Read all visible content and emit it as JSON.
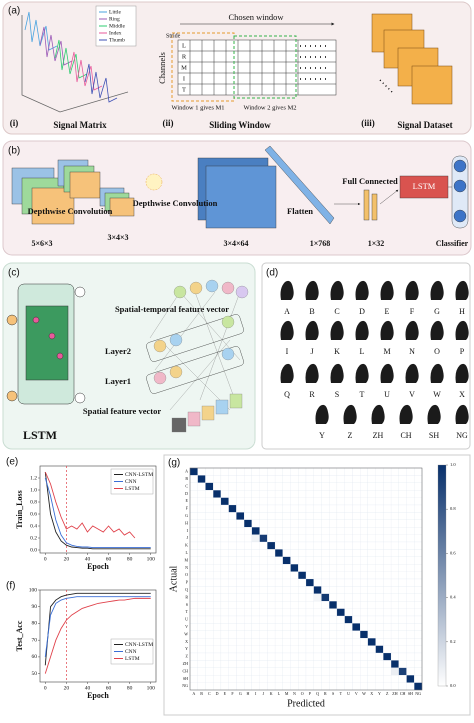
{
  "panels": {
    "a": {
      "label": "(a)",
      "matrix": {
        "tag": "(i)",
        "caption": "Signal Matrix",
        "legend": [
          "Little",
          "Ring",
          "Middle",
          "Index",
          "Thumb"
        ]
      },
      "window": {
        "tag": "(ii)",
        "caption": "Sliding Window",
        "chosen": "Chosen window",
        "stride": "Stride",
        "channels": "Channels",
        "rows": [
          "L",
          "R",
          "M",
          "I",
          "T"
        ],
        "w1": "Window 1 gives M1",
        "w2": "Window 2 gives M2"
      },
      "dataset": {
        "tag": "(iii)",
        "caption": "Signal Dataset"
      }
    },
    "b": {
      "label": "(b)",
      "dims": [
        "5×6×3",
        "3×4×3",
        "3×4×64",
        "1×768",
        "1×32"
      ],
      "conv1": "Depthwise Convolution",
      "conv2": "Depthwise Convolution",
      "flatten": "Flatten",
      "fc": "Full Connected",
      "lstm": "LSTM",
      "classifier": "Classifier"
    },
    "c": {
      "label": "(c)",
      "st_vector": "Spatial-temporal feature vector",
      "layer2": "Layer2",
      "layer1": "Layer1",
      "s_vector": "Spatial feature vector",
      "lstm": "LSTM"
    },
    "d": {
      "label": "(d)",
      "letters": [
        "A",
        "B",
        "C",
        "D",
        "E",
        "F",
        "G",
        "H",
        "I",
        "J",
        "K",
        "L",
        "M",
        "N",
        "O",
        "P",
        "Q",
        "R",
        "S",
        "T",
        "U",
        "V",
        "W",
        "X",
        "Y",
        "Z",
        "ZH",
        "CH",
        "SH",
        "NG"
      ]
    }
  },
  "chart_data": [
    {
      "type": "line",
      "label": "(e)",
      "y_label": "Train_Loss",
      "x_label": "Epoch",
      "x": [
        0,
        5,
        10,
        15,
        20,
        25,
        30,
        35,
        40,
        45,
        50,
        55,
        60,
        65,
        70,
        75,
        80,
        85,
        90,
        95,
        100
      ],
      "xlim": [
        -5,
        105
      ],
      "xticks": [
        0,
        20,
        40,
        60,
        80,
        100
      ],
      "ylim": [
        -0.05,
        1.4
      ],
      "yticks": [
        {
          "value": 0,
          "label": "0.0"
        },
        0.2,
        0.4,
        0.6,
        0.8,
        {
          "value": 1,
          "label": "1.0"
        },
        1.2
      ],
      "marker_x": 20,
      "legend": "upper right",
      "series": [
        {
          "name": "CNN-LSTM",
          "color": "#222222",
          "values": [
            1.3,
            0.6,
            0.3,
            0.15,
            0.08,
            0.05,
            0.04,
            0.03,
            0.03,
            0.02,
            0.02,
            0.02,
            0.02,
            0.02,
            0.02,
            0.02,
            0.02,
            0.02,
            0.02,
            0.02,
            0.02
          ]
        },
        {
          "name": "CNN",
          "color": "#3b6fd6",
          "values": [
            1.2,
            0.9,
            0.5,
            0.25,
            0.12,
            0.08,
            0.06,
            0.05,
            0.05,
            0.04,
            0.04,
            0.04,
            0.04,
            0.04,
            0.04,
            0.04,
            0.04,
            0.04,
            0.04,
            0.04,
            0.04
          ]
        },
        {
          "name": "LSTM",
          "color": "#e0424b",
          "values": [
            1.3,
            1.1,
            0.8,
            0.55,
            0.35,
            0.4,
            0.35,
            0.45,
            0.3,
            0.4,
            0.35,
            0.3,
            0.4,
            0.3,
            0.35,
            0.25,
            0.3,
            0.2,
            null,
            null,
            null
          ]
        }
      ]
    },
    {
      "type": "line",
      "label": "(f)",
      "y_label": "Test_Acc",
      "x_label": "Epoch",
      "x": [
        0,
        5,
        10,
        15,
        20,
        25,
        30,
        35,
        40,
        45,
        50,
        55,
        60,
        65,
        70,
        75,
        80,
        85,
        90,
        95,
        100
      ],
      "xlim": [
        -5,
        105
      ],
      "xticks": [
        0,
        20,
        40,
        60,
        80,
        100
      ],
      "ylim": [
        45,
        100
      ],
      "yticks": [
        50,
        60,
        70,
        80,
        90,
        100
      ],
      "marker_x": 20,
      "legend": "lower right",
      "series": [
        {
          "name": "CNN-LSTM",
          "color": "#222222",
          "values": [
            55,
            90,
            94,
            96,
            97,
            97.5,
            98,
            98,
            98,
            98,
            98,
            98,
            98,
            98,
            98,
            98,
            98,
            98,
            98,
            98,
            98
          ]
        },
        {
          "name": "CNN",
          "color": "#3b6fd6",
          "values": [
            60,
            85,
            92,
            94,
            95,
            95.5,
            96,
            96,
            96,
            96,
            96,
            96,
            96,
            96,
            96,
            96,
            96,
            96,
            96,
            96,
            96
          ]
        },
        {
          "name": "LSTM",
          "color": "#e0424b",
          "values": [
            50,
            60,
            70,
            77,
            82,
            85,
            87,
            89,
            90,
            91,
            92,
            92.5,
            93,
            93.5,
            94,
            94,
            94.5,
            95,
            95,
            95,
            95
          ]
        }
      ]
    },
    {
      "type": "heatmap",
      "label": "(g)",
      "x_label": "Predicted",
      "y_label": "Actual",
      "categories": [
        "A",
        "B",
        "C",
        "D",
        "E",
        "F",
        "G",
        "H",
        "I",
        "J",
        "K",
        "L",
        "M",
        "N",
        "O",
        "P",
        "Q",
        "R",
        "S",
        "T",
        "U",
        "V",
        "W",
        "X",
        "Y",
        "Z",
        "ZH",
        "CH",
        "SH",
        "NG"
      ],
      "colors": [
        "#ffffff",
        "#08306b"
      ],
      "clim": [
        0,
        1
      ],
      "colorbar_ticks": [
        {
          "value": 0,
          "label": "0.0"
        },
        0.2,
        0.4,
        0.6,
        0.8,
        {
          "value": 1,
          "label": "1.0"
        }
      ],
      "values": [
        [
          1,
          0,
          0,
          0,
          0,
          0,
          0,
          0,
          0,
          0,
          0,
          0,
          0,
          0,
          0,
          0,
          0,
          0,
          0,
          0,
          0,
          0,
          0,
          0,
          0,
          0,
          0,
          0,
          0,
          0
        ],
        [
          0,
          1,
          0,
          0,
          0,
          0,
          0,
          0,
          0,
          0,
          0,
          0,
          0,
          0,
          0,
          0,
          0,
          0,
          0,
          0,
          0,
          0,
          0,
          0,
          0,
          0,
          0,
          0,
          0,
          0
        ],
        [
          0,
          0,
          1,
          0,
          0,
          0,
          0,
          0,
          0,
          0,
          0,
          0,
          0,
          0,
          0,
          0,
          0,
          0,
          0,
          0,
          0,
          0,
          0,
          0,
          0,
          0,
          0,
          0,
          0,
          0
        ],
        [
          0,
          0,
          0,
          1,
          0,
          0,
          0,
          0,
          0,
          0,
          0,
          0,
          0,
          0,
          0,
          0,
          0,
          0,
          0,
          0,
          0,
          0,
          0,
          0,
          0,
          0,
          0,
          0,
          0,
          0
        ],
        [
          0,
          0,
          0,
          0,
          1,
          0,
          0,
          0,
          0,
          0,
          0,
          0,
          0,
          0,
          0,
          0,
          0,
          0,
          0,
          0,
          0,
          0,
          0,
          0,
          0,
          0,
          0,
          0,
          0,
          0
        ],
        [
          0,
          0,
          0,
          0,
          0,
          1,
          0,
          0,
          0,
          0,
          0,
          0,
          0,
          0,
          0,
          0,
          0,
          0,
          0,
          0,
          0,
          0,
          0,
          0,
          0,
          0,
          0,
          0,
          0,
          0
        ],
        [
          0,
          0,
          0,
          0,
          0,
          0,
          1,
          0,
          0,
          0,
          0,
          0,
          0,
          0,
          0,
          0,
          0,
          0,
          0,
          0,
          0,
          0,
          0,
          0,
          0,
          0,
          0,
          0,
          0,
          0
        ],
        [
          0,
          0,
          0,
          0,
          0,
          0,
          0,
          1,
          0,
          0,
          0,
          0,
          0,
          0,
          0,
          0,
          0,
          0,
          0,
          0,
          0,
          0,
          0,
          0,
          0,
          0,
          0,
          0,
          0,
          0
        ],
        [
          0,
          0,
          0,
          0,
          0,
          0,
          0,
          0,
          1,
          0,
          0,
          0,
          0,
          0,
          0,
          0,
          0,
          0,
          0,
          0,
          0,
          0,
          0,
          0,
          0,
          0,
          0,
          0,
          0,
          0
        ],
        [
          0,
          0,
          0,
          0,
          0,
          0,
          0,
          0,
          0.06,
          0.94,
          0,
          0,
          0,
          0,
          0,
          0,
          0,
          0,
          0,
          0,
          0,
          0,
          0,
          0,
          0,
          0,
          0,
          0,
          0,
          0
        ],
        [
          0,
          0,
          0,
          0,
          0,
          0,
          0,
          0,
          0,
          0,
          1,
          0,
          0,
          0,
          0,
          0,
          0,
          0,
          0,
          0,
          0,
          0,
          0,
          0,
          0,
          0,
          0,
          0,
          0,
          0
        ],
        [
          0,
          0,
          0,
          0,
          0,
          0,
          0,
          0,
          0,
          0,
          0,
          1,
          0,
          0,
          0,
          0,
          0,
          0,
          0,
          0,
          0,
          0,
          0,
          0,
          0,
          0,
          0,
          0,
          0,
          0
        ],
        [
          0,
          0,
          0,
          0,
          0,
          0,
          0,
          0,
          0,
          0,
          0,
          0,
          1,
          0,
          0,
          0,
          0,
          0,
          0,
          0,
          0,
          0,
          0,
          0,
          0,
          0,
          0,
          0,
          0,
          0
        ],
        [
          0,
          0,
          0,
          0,
          0,
          0,
          0,
          0,
          0,
          0,
          0,
          0,
          0,
          1,
          0,
          0,
          0,
          0,
          0,
          0,
          0,
          0,
          0,
          0,
          0,
          0,
          0,
          0,
          0,
          0
        ],
        [
          0,
          0,
          0,
          0,
          0,
          0,
          0,
          0,
          0,
          0,
          0,
          0,
          0,
          0,
          1,
          0,
          0,
          0,
          0,
          0,
          0,
          0,
          0,
          0,
          0,
          0,
          0,
          0,
          0,
          0
        ],
        [
          0,
          0,
          0,
          0,
          0,
          0,
          0,
          0,
          0,
          0,
          0,
          0,
          0,
          0,
          0,
          1,
          0,
          0,
          0,
          0,
          0,
          0,
          0,
          0,
          0,
          0,
          0,
          0,
          0,
          0
        ],
        [
          0,
          0,
          0,
          0,
          0,
          0,
          0,
          0,
          0,
          0,
          0,
          0,
          0,
          0,
          0,
          0,
          1,
          0,
          0,
          0,
          0,
          0,
          0,
          0,
          0,
          0,
          0,
          0,
          0,
          0
        ],
        [
          0,
          0,
          0,
          0,
          0,
          0,
          0,
          0,
          0,
          0,
          0,
          0,
          0,
          0,
          0,
          0,
          0.05,
          0.95,
          0,
          0,
          0,
          0,
          0,
          0,
          0,
          0,
          0,
          0,
          0,
          0
        ],
        [
          0,
          0,
          0,
          0,
          0,
          0,
          0,
          0,
          0,
          0,
          0,
          0,
          0,
          0,
          0,
          0,
          0,
          0,
          1,
          0,
          0,
          0,
          0,
          0,
          0,
          0,
          0,
          0,
          0,
          0
        ],
        [
          0,
          0,
          0,
          0,
          0,
          0,
          0,
          0,
          0,
          0,
          0,
          0,
          0,
          0,
          0,
          0,
          0,
          0,
          0,
          1,
          0,
          0,
          0,
          0,
          0,
          0,
          0,
          0,
          0,
          0
        ],
        [
          0,
          0,
          0,
          0,
          0,
          0,
          0,
          0,
          0,
          0,
          0,
          0,
          0,
          0,
          0,
          0,
          0,
          0,
          0,
          0,
          1,
          0,
          0,
          0,
          0,
          0,
          0,
          0,
          0,
          0
        ],
        [
          0,
          0,
          0,
          0,
          0,
          0,
          0,
          0,
          0,
          0,
          0,
          0,
          0,
          0,
          0,
          0,
          0,
          0,
          0,
          0,
          0,
          1,
          0,
          0,
          0,
          0,
          0,
          0,
          0,
          0
        ],
        [
          0,
          0,
          0,
          0,
          0,
          0,
          0,
          0,
          0,
          0,
          0,
          0,
          0,
          0,
          0,
          0,
          0,
          0,
          0,
          0,
          0,
          0,
          1,
          0,
          0,
          0,
          0,
          0,
          0,
          0
        ],
        [
          0,
          0,
          0,
          0,
          0,
          0,
          0,
          0,
          0,
          0,
          0,
          0,
          0,
          0,
          0,
          0,
          0,
          0,
          0,
          0,
          0,
          0,
          0,
          1,
          0,
          0,
          0,
          0,
          0,
          0
        ],
        [
          0,
          0,
          0,
          0,
          0,
          0,
          0,
          0,
          0,
          0,
          0,
          0,
          0,
          0,
          0,
          0,
          0,
          0,
          0,
          0,
          0,
          0,
          0,
          0,
          1,
          0,
          0,
          0,
          0,
          0
        ],
        [
          0,
          0,
          0,
          0,
          0,
          0,
          0,
          0,
          0,
          0,
          0,
          0,
          0,
          0,
          0,
          0,
          0,
          0,
          0,
          0,
          0,
          0,
          0,
          0,
          0,
          1,
          0,
          0,
          0,
          0
        ],
        [
          0,
          0,
          0,
          0,
          0,
          0,
          0,
          0,
          0,
          0,
          0,
          0,
          0,
          0,
          0,
          0,
          0,
          0,
          0,
          0,
          0,
          0,
          0,
          0,
          0,
          0,
          1,
          0,
          0,
          0
        ],
        [
          0,
          0,
          0,
          0,
          0,
          0,
          0,
          0,
          0,
          0,
          0,
          0,
          0,
          0,
          0,
          0,
          0,
          0,
          0,
          0,
          0,
          0,
          0,
          0,
          0,
          0,
          0.08,
          0.92,
          0,
          0
        ],
        [
          0,
          0,
          0,
          0,
          0,
          0,
          0,
          0,
          0,
          0,
          0,
          0,
          0,
          0,
          0,
          0,
          0,
          0,
          0,
          0,
          0,
          0,
          0,
          0,
          0,
          0,
          0,
          0,
          1,
          0
        ],
        [
          0,
          0,
          0,
          0,
          0,
          0,
          0,
          0,
          0,
          0,
          0,
          0,
          0,
          0,
          0,
          0,
          0,
          0,
          0,
          0,
          0,
          0,
          0,
          0,
          0,
          0,
          0,
          0,
          0,
          1
        ]
      ]
    }
  ]
}
